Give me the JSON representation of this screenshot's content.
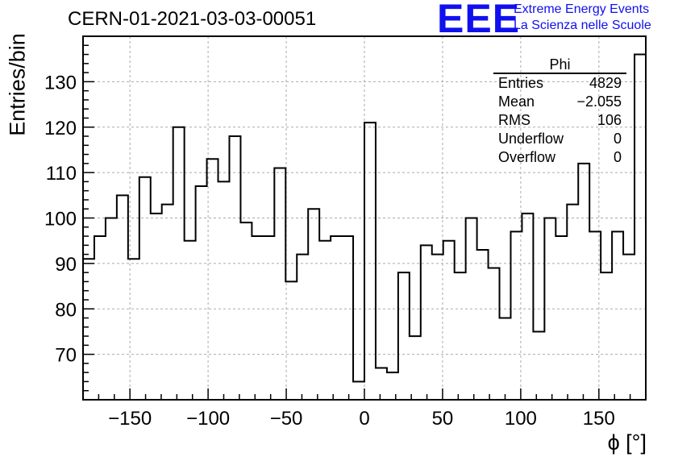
{
  "title": "CERN-01-2021-03-03-00051",
  "logo": {
    "mark": "EEE",
    "line1": "Extreme Energy Events",
    "line2": "La Scienza nelle Scuole",
    "color": "#1010ee"
  },
  "stats": {
    "name": "Phi",
    "rows": [
      {
        "label": "Entries",
        "value": "4829"
      },
      {
        "label": "Mean",
        "value": "−2.055"
      },
      {
        "label": "RMS",
        "value": "106"
      },
      {
        "label": "Underflow",
        "value": "0"
      },
      {
        "label": "Overflow",
        "value": "0"
      }
    ]
  },
  "chart_data": {
    "type": "histogram",
    "title": "CERN-01-2021-03-03-00051",
    "xlabel": "ϕ [°]",
    "ylabel": "Entries/bin",
    "xlim": [
      -180,
      180
    ],
    "ylim": [
      60,
      140
    ],
    "bin_width": 7.2,
    "xticks": [
      -150,
      -100,
      -50,
      0,
      50,
      100,
      150
    ],
    "yticks": [
      70,
      80,
      90,
      100,
      110,
      120,
      130
    ],
    "grid": true,
    "values": [
      91,
      96,
      100,
      105,
      91,
      109,
      101,
      103,
      120,
      95,
      107,
      113,
      108,
      118,
      99,
      96,
      96,
      111,
      86,
      92,
      102,
      95,
      96,
      96,
      64,
      121,
      67,
      66,
      88,
      74,
      94,
      92,
      95,
      88,
      100,
      93,
      89,
      78,
      97,
      101,
      75,
      100,
      96,
      103,
      112,
      97,
      88,
      97,
      92,
      136
    ]
  }
}
